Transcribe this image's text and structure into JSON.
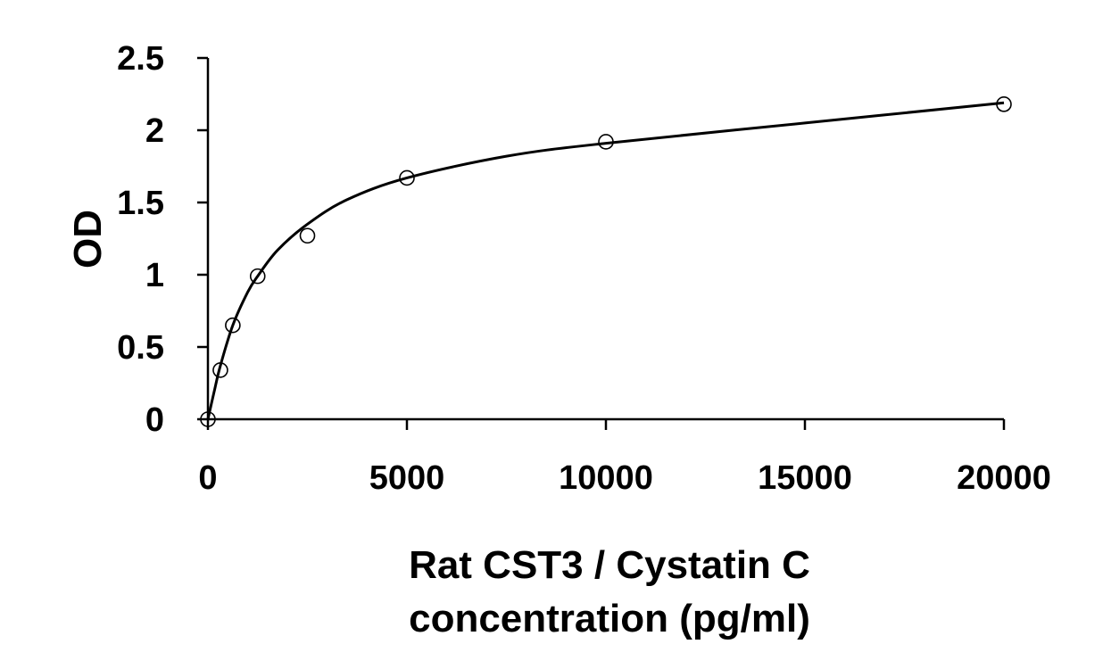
{
  "chart_data": {
    "type": "scatter",
    "title": "",
    "xlabel_lines": [
      "Rat CST3 / Cystatin C",
      "concentration (pg/ml)"
    ],
    "ylabel": "OD",
    "xlim": [
      0,
      20000
    ],
    "ylim": [
      0,
      2.5
    ],
    "x_ticks": [
      0,
      5000,
      10000,
      15000,
      20000
    ],
    "x_tick_labels": [
      "0",
      "5000",
      "10000",
      "15000",
      "20000"
    ],
    "y_ticks": [
      0,
      0.5,
      1,
      1.5,
      2,
      2.5
    ],
    "y_tick_labels": [
      "0",
      "0.5",
      "1",
      "1.5",
      "2",
      "2.5"
    ],
    "grid": false,
    "legend": "none",
    "series": [
      {
        "marker": "open-circle",
        "x": [
          0,
          312.5,
          625,
          1250,
          2500,
          5000,
          10000,
          20000
        ],
        "y": [
          0.0,
          0.34,
          0.65,
          0.99,
          1.27,
          1.67,
          1.92,
          2.18
        ]
      }
    ],
    "fit_curve": {
      "style": "smooth-line",
      "x": [
        0,
        156,
        312.5,
        625,
        1000,
        1250,
        1750,
        2500,
        3500,
        5000,
        7500,
        10000,
        15000,
        20000
      ],
      "y": [
        0.0,
        0.19,
        0.37,
        0.65,
        0.88,
        0.99,
        1.17,
        1.35,
        1.52,
        1.67,
        1.82,
        1.91,
        2.05,
        2.19
      ]
    },
    "colors": {
      "axis": "#000000",
      "marker_stroke": "#000000",
      "curve": "#000000"
    }
  }
}
